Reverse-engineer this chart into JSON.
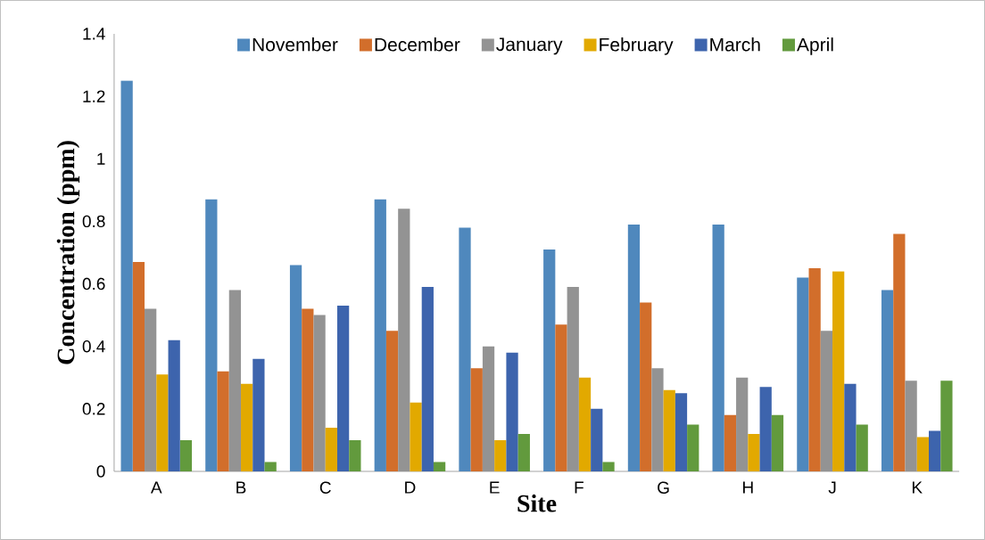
{
  "chart_data": {
    "type": "bar",
    "xlabel": "Site",
    "ylabel": "Concentration (ppm)",
    "categories": [
      "A",
      "B",
      "C",
      "D",
      "E",
      "F",
      "G",
      "H",
      "J",
      "K"
    ],
    "series": [
      {
        "name": "November",
        "color": "#4f88bd",
        "values": [
          1.25,
          0.87,
          0.66,
          0.87,
          0.78,
          0.71,
          0.79,
          0.79,
          0.62,
          0.58
        ]
      },
      {
        "name": "December",
        "color": "#d26e2b",
        "values": [
          0.67,
          0.32,
          0.52,
          0.45,
          0.33,
          0.47,
          0.54,
          0.18,
          0.65,
          0.76
        ]
      },
      {
        "name": "January",
        "color": "#939393",
        "values": [
          0.52,
          0.58,
          0.5,
          0.84,
          0.4,
          0.59,
          0.33,
          0.3,
          0.45,
          0.29
        ]
      },
      {
        "name": "February",
        "color": "#e2a900",
        "values": [
          0.31,
          0.28,
          0.14,
          0.22,
          0.1,
          0.3,
          0.26,
          0.12,
          0.64,
          0.11
        ]
      },
      {
        "name": "March",
        "color": "#3d64ad",
        "values": [
          0.42,
          0.36,
          0.53,
          0.59,
          0.38,
          0.2,
          0.25,
          0.27,
          0.28,
          0.13
        ]
      },
      {
        "name": "April",
        "color": "#629a3d",
        "values": [
          0.1,
          0.03,
          0.1,
          0.03,
          0.12,
          0.03,
          0.15,
          0.18,
          0.15,
          0.29
        ]
      }
    ],
    "ylim": [
      0,
      1.4
    ],
    "yticks": [
      0,
      0.2,
      0.4,
      0.6,
      0.8,
      1,
      1.2,
      1.4
    ],
    "legend": "top"
  }
}
